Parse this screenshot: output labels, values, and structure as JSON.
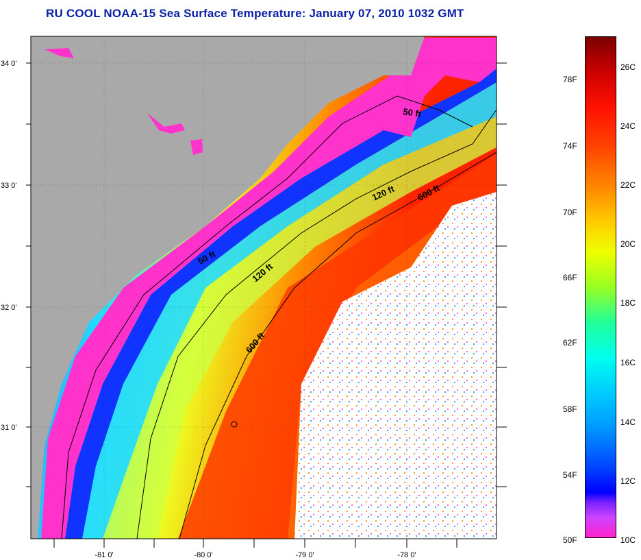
{
  "title": "RU COOL  NOAA-15  Sea Surface Temperature:  January 07, 2010 1032 GMT",
  "map": {
    "lat_ticks": [
      "34 0'",
      "33 0'",
      "32 0'",
      "31 0'"
    ],
    "lon_ticks": [
      "-81 0'",
      "-80 0'",
      "-79 0'",
      "-78 0'"
    ],
    "contours": [
      "50 ft",
      "50 ft",
      "120 ft",
      "120 ft",
      "600 ft",
      "600 ft"
    ],
    "colors": {
      "land": "#a9a9a9",
      "cloud": "#ffffff",
      "sst_10c": "#ff33cc",
      "sst_12c": "#0000ff",
      "sst_16c": "#00ffff",
      "sst_20c": "#ffff00",
      "sst_24c": "#ff3300"
    }
  },
  "colorbar": {
    "fahrenheit_labels": [
      "78F",
      "74F",
      "70F",
      "66F",
      "62F",
      "58F",
      "54F",
      "50F"
    ],
    "celsius_labels": [
      "26C",
      "24C",
      "22C",
      "20C",
      "18C",
      "16C",
      "14C",
      "12C",
      "10C"
    ],
    "range_c": [
      10,
      27
    ]
  }
}
